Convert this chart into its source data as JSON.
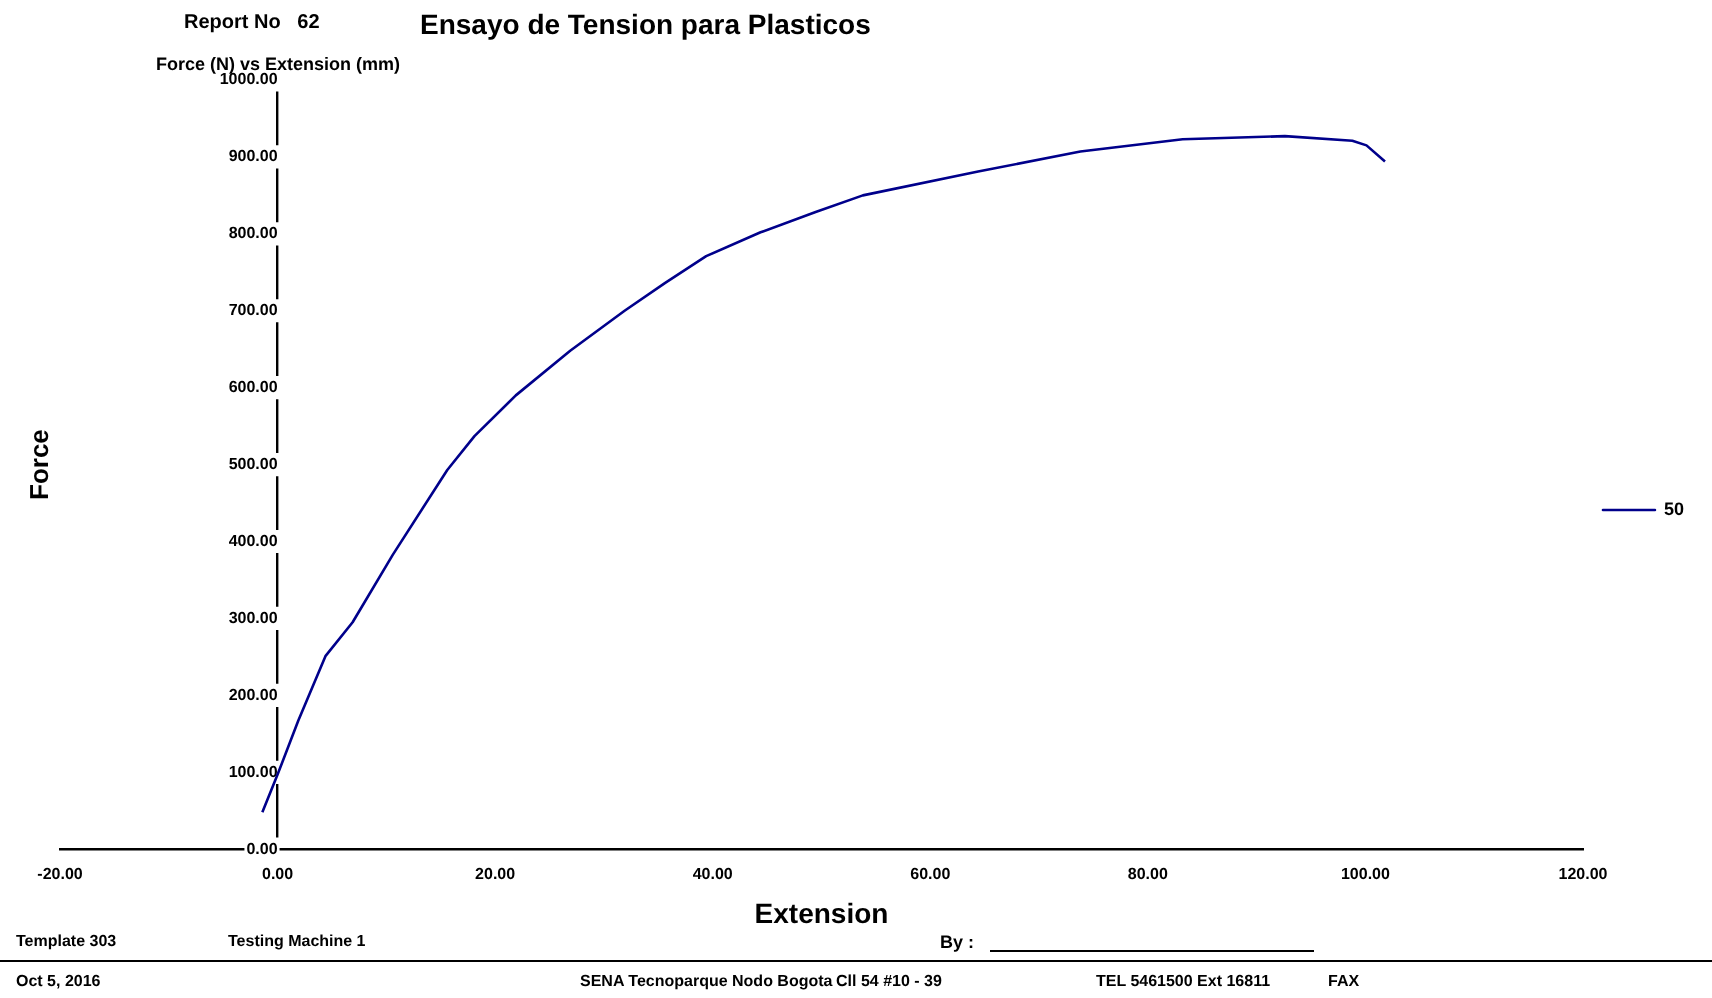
{
  "chart_data": {
    "type": "line",
    "title": "Ensayo de Tension para Plasticos",
    "subtitle": "Force (N) vs Extension (mm)",
    "xlabel": "Extension",
    "ylabel": "Force",
    "annotations": [
      "Report No   62",
      "Template 303",
      "Testing Machine 1",
      "By :",
      "Oct 5, 2016",
      "SENA Tecnoparque Nodo Bogota",
      "Cll 54 #10 - 39",
      "TEL 5461500 Ext 16811",
      "FAX"
    ],
    "series": [
      {
        "name": "50",
        "color": "#00008b",
        "x": [
          -1.4,
          0,
          1.9,
          4.4,
          6.9,
          10.6,
          15.6,
          18.1,
          21.9,
          26.9,
          31.9,
          35.6,
          39.4,
          44.4,
          49.4,
          53.8,
          64.4,
          73.8,
          83.2,
          92.6,
          98.8,
          100.1,
          101.8
        ],
        "values": [
          48,
          97,
          167,
          251,
          295,
          383,
          493,
          537,
          590,
          648,
          700,
          736,
          771,
          802,
          828,
          850,
          881,
          907,
          923,
          927,
          921,
          915,
          894
        ]
      }
    ],
    "xlim": [
      -20,
      120
    ],
    "xticks": [
      {
        "value": -20,
        "label": "-20.00"
      },
      {
        "value": 0,
        "label": "0.00"
      },
      {
        "value": 20,
        "label": "20.00"
      },
      {
        "value": 40,
        "label": "40.00"
      },
      {
        "value": 60,
        "label": "60.00"
      },
      {
        "value": 80,
        "label": "80.00"
      },
      {
        "value": 100,
        "label": "100.00"
      },
      {
        "value": 120,
        "label": "120.00"
      }
    ],
    "ylim": [
      0,
      1000
    ],
    "yticks": [
      {
        "value": 0,
        "label": "0.00"
      },
      {
        "value": 100,
        "label": "100.00"
      },
      {
        "value": 200,
        "label": "200.00"
      },
      {
        "value": 300,
        "label": "300.00"
      },
      {
        "value": 400,
        "label": "400.00"
      },
      {
        "value": 500,
        "label": "500.00"
      },
      {
        "value": 600,
        "label": "600.00"
      },
      {
        "value": 700,
        "label": "700.00"
      },
      {
        "value": 800,
        "label": "800.00"
      },
      {
        "value": 900,
        "label": "900.00"
      },
      {
        "value": 1000,
        "label": "1000.00"
      }
    ],
    "grid": false,
    "legend": "right",
    "marker": "none",
    "line_style": "solid"
  }
}
